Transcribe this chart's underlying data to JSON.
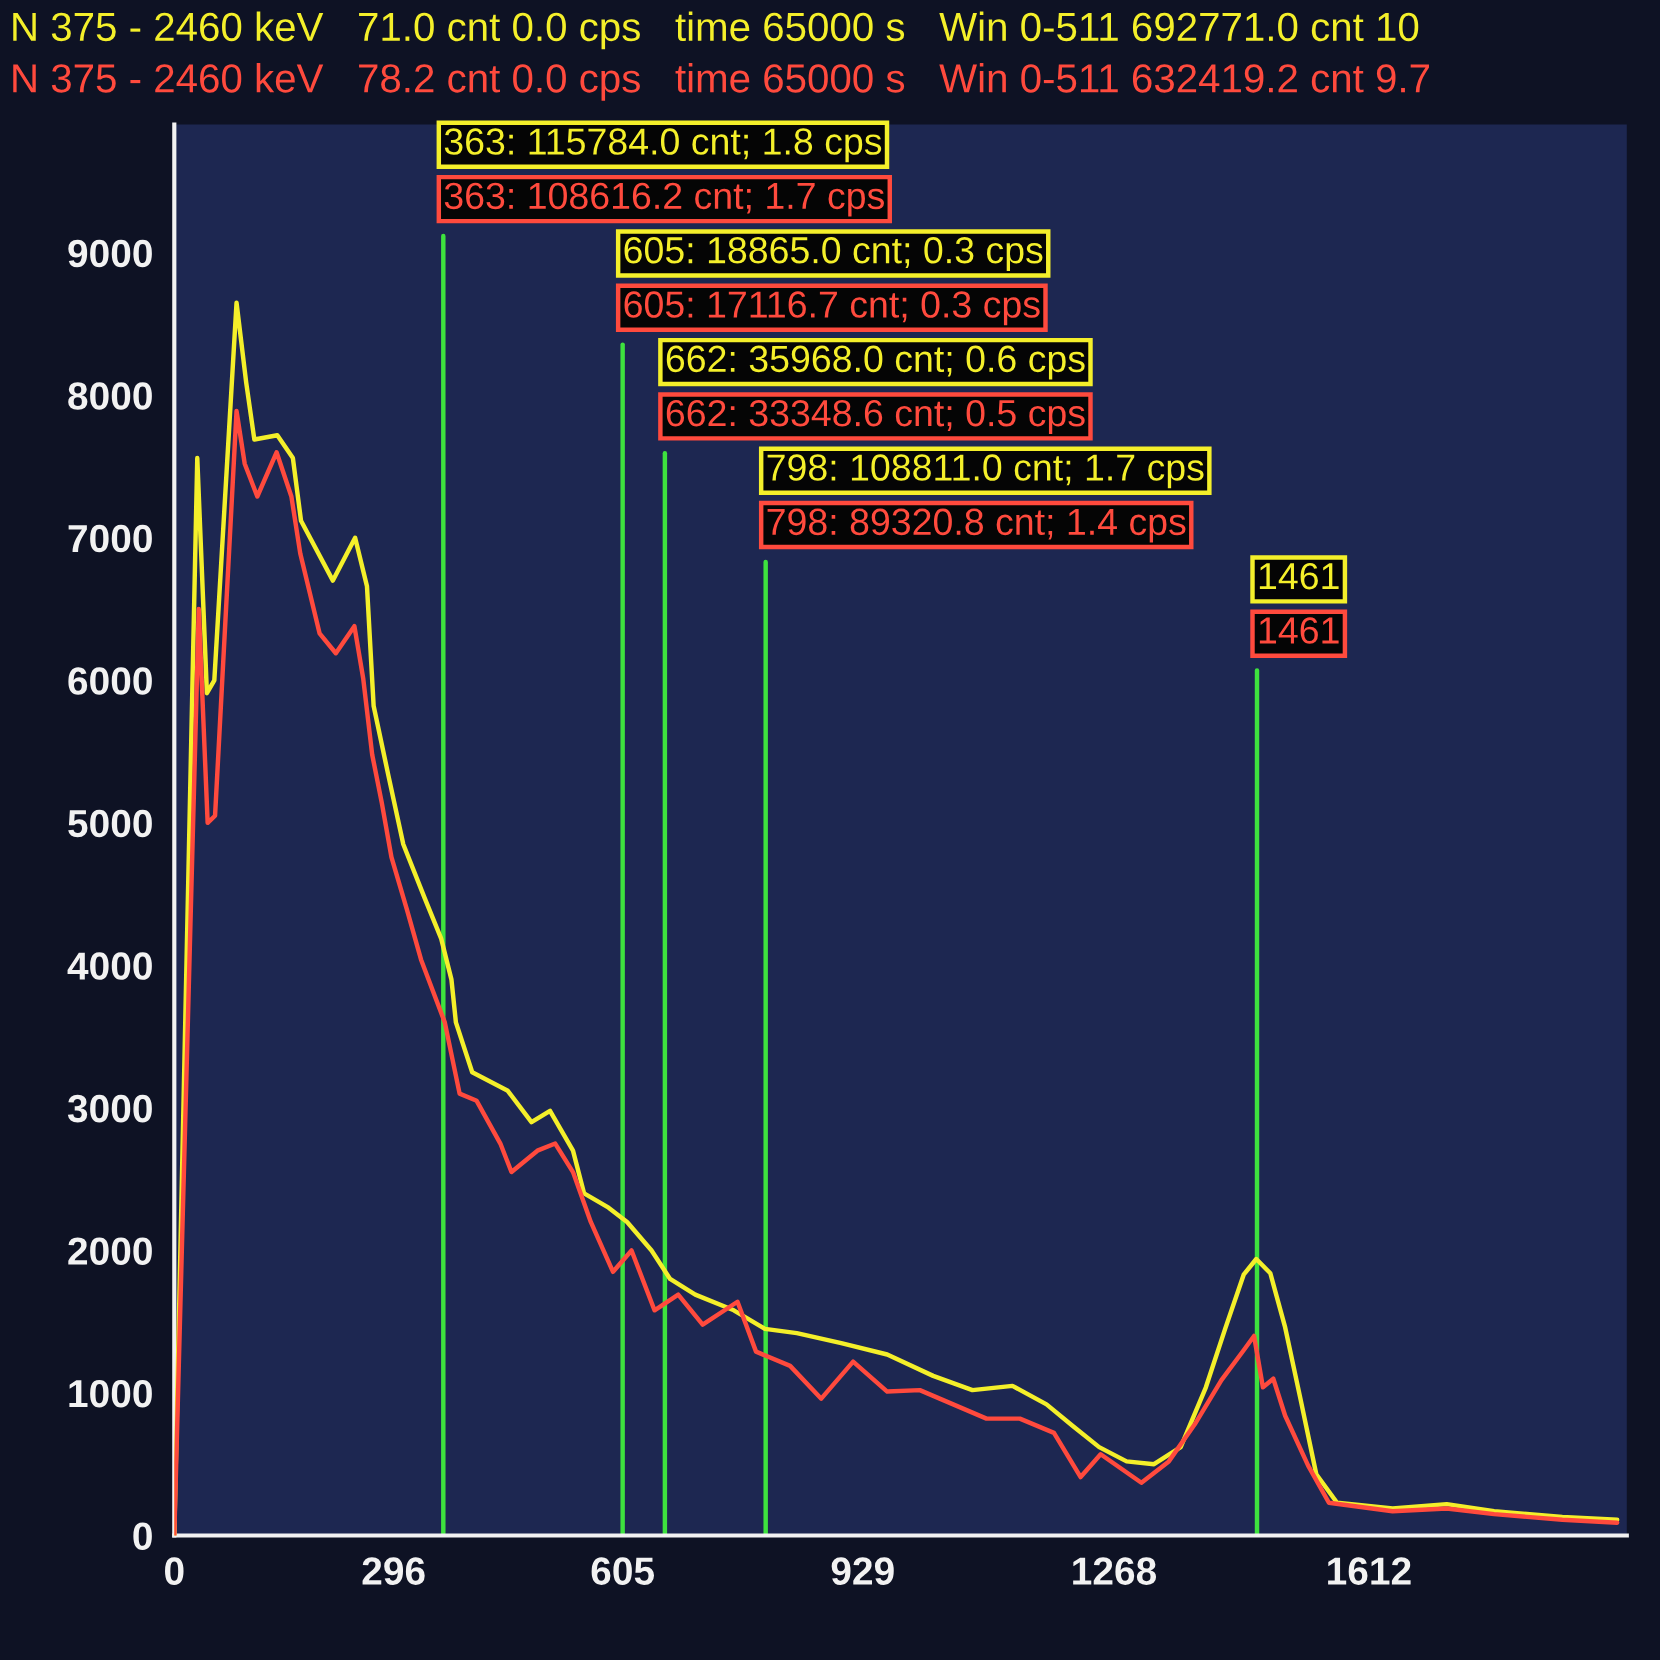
{
  "chart_data": {
    "type": "line",
    "series": [
      {
        "color": "#f4ef2a",
        "x": [
          0,
          31,
          44,
          54,
          84,
          97,
          108,
          139,
          160,
          171,
          214,
          244,
          260,
          269,
          289,
          309,
          338,
          360,
          374,
          380,
          402,
          450,
          482,
          507,
          538,
          553,
          586,
          611,
          644,
          669,
          703,
          755,
          797,
          840,
          900,
          962,
          1024,
          1077,
          1131,
          1177,
          1212,
          1248,
          1285,
          1322,
          1358,
          1392,
          1418,
          1443,
          1460,
          1479,
          1499,
          1520,
          1541,
          1569,
          1644,
          1717,
          1781,
          1873,
          1947
        ],
        "values": [
          0,
          7560,
          5910,
          6000,
          8650,
          8090,
          7690,
          7720,
          7560,
          7120,
          6700,
          7000,
          6660,
          5820,
          5330,
          4850,
          4470,
          4190,
          3900,
          3600,
          3250,
          3120,
          2900,
          2980,
          2700,
          2400,
          2300,
          2200,
          2000,
          1800,
          1690,
          1580,
          1450,
          1420,
          1350,
          1270,
          1120,
          1020,
          1050,
          920,
          770,
          620,
          520,
          500,
          620,
          1040,
          1450,
          1830,
          1940,
          1840,
          1460,
          950,
          430,
          230,
          190,
          220,
          170,
          130,
          110
        ]
      },
      {
        "color": "#ff4a3d",
        "x": [
          0,
          33,
          45,
          55,
          84,
          95,
          112,
          138,
          158,
          170,
          196,
          218,
          243,
          255,
          267,
          280,
          293,
          314,
          333,
          365,
          385,
          408,
          440,
          455,
          490,
          514,
          538,
          562,
          592,
          617,
          648,
          680,
          713,
          760,
          785,
          831,
          873,
          916,
          962,
          1006,
          1051,
          1096,
          1141,
          1187,
          1223,
          1250,
          1305,
          1342,
          1377,
          1413,
          1443,
          1457,
          1469,
          1483,
          1499,
          1530,
          1558,
          1644,
          1717,
          1781,
          1873,
          1947
        ],
        "values": [
          0,
          6500,
          5000,
          5050,
          7890,
          7520,
          7290,
          7600,
          7290,
          6890,
          6330,
          6190,
          6380,
          6010,
          5480,
          5140,
          4760,
          4390,
          4040,
          3600,
          3100,
          3050,
          2750,
          2550,
          2700,
          2750,
          2550,
          2200,
          1850,
          2000,
          1580,
          1690,
          1480,
          1640,
          1290,
          1190,
          960,
          1220,
          1010,
          1020,
          920,
          820,
          820,
          720,
          410,
          570,
          370,
          520,
          780,
          1090,
          1300,
          1400,
          1040,
          1100,
          840,
          490,
          230,
          170,
          190,
          150,
          110,
          90
        ]
      }
    ],
    "xlim": [
      0,
      1960
    ],
    "ylim": [
      0,
      9900
    ],
    "xticks": [
      0,
      296,
      605,
      929,
      1268,
      1612
    ],
    "yticks": [
      0,
      1000,
      2000,
      3000,
      4000,
      5000,
      6000,
      7000,
      8000,
      9000
    ],
    "ref_lines": [
      {
        "axis": "x",
        "value": 363,
        "label": "363: 115784.0 cnt; 1.8 cps\n363: 108616.2 cnt; 1.7 cps",
        "color": "#3ee23e"
      },
      {
        "axis": "x",
        "value": 605,
        "label": "605: 18865.0 cnt; 0.3 cps\n605: 17116.7 cnt; 0.3 cps",
        "color": "#3ee23e"
      },
      {
        "axis": "x",
        "value": 662,
        "label": "662: 35968.0 cnt; 0.6 cps\n662: 33348.6 cnt; 0.5 cps",
        "color": "#3ee23e"
      },
      {
        "axis": "x",
        "value": 798,
        "label": "798: 108811.0 cnt; 1.7 cps\n798: 89320.8 cnt; 1.4 cps",
        "color": "#3ee23e"
      },
      {
        "axis": "x",
        "value": 1461,
        "label": "1461\n1461",
        "color": "#3ee23e"
      }
    ],
    "annotations": [
      "N 375 - 2460 keV   71.0 cnt 0.0 cps   time 65000 s   Win 0-511 692771.0 cnt 10",
      "N 375 - 2460 keV   78.2 cnt 0.0 cps   time 65000 s   Win 0-511 632419.2 cnt 9.7"
    ]
  }
}
